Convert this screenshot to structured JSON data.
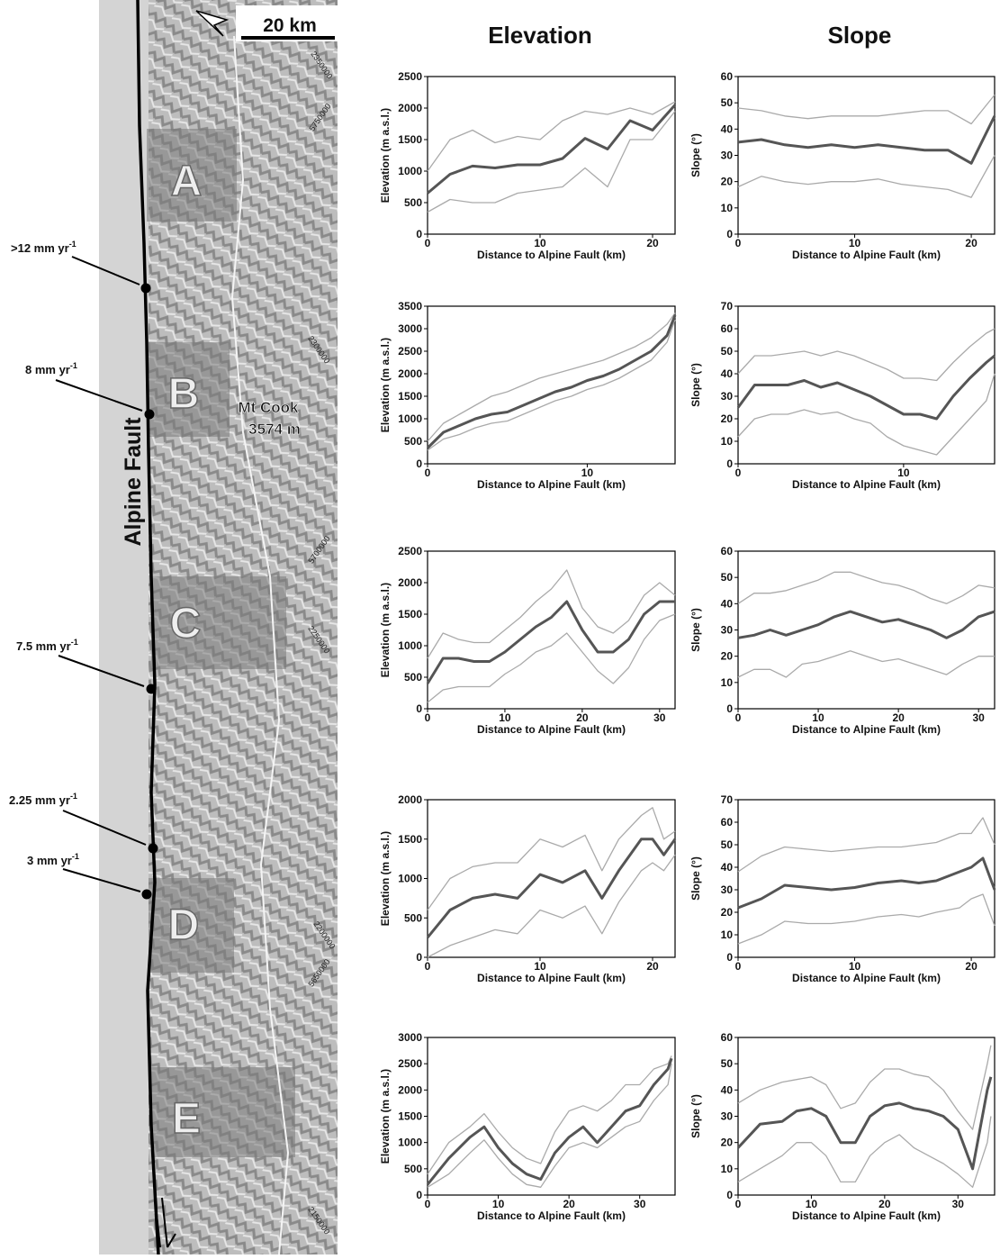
{
  "headers": {
    "elevation": "Elevation",
    "slope": "Slope"
  },
  "map": {
    "scale": "20 km",
    "fault": "Alpine Fault",
    "peak_name": "Mt Cook",
    "peak_height": "3574 m",
    "regions": [
      "A",
      "B",
      "C",
      "D",
      "E"
    ],
    "rates": [
      {
        "text": ">12 mm yr",
        "exp": "-1"
      },
      {
        "text": "8 mm yr",
        "exp": "-1"
      },
      {
        "text": "7.5 mm yr",
        "exp": "-1"
      },
      {
        "text": "2.25 mm yr",
        "exp": "-1"
      },
      {
        "text": "3 mm yr",
        "exp": "-1"
      }
    ],
    "coords": [
      "2350000",
      "5750000",
      "2300000",
      "5700000",
      "2250000",
      "2200000",
      "5650000",
      "2150000"
    ]
  },
  "chart_data": [
    {
      "type": "line",
      "xlabel": "Distance to Alpine Fault (km)",
      "ylabel": "Elevation (m a.s.l.)",
      "xlim": [
        0,
        22
      ],
      "xticks": [
        0,
        10,
        20
      ],
      "ylim": [
        0,
        2500
      ],
      "yticks": [
        0,
        500,
        1000,
        1500,
        2000,
        2500
      ],
      "x": [
        0,
        2,
        4,
        6,
        8,
        10,
        12,
        14,
        16,
        18,
        20,
        22
      ],
      "series": [
        {
          "color": "#aaaaaa",
          "values": [
            1000,
            1500,
            1650,
            1450,
            1550,
            1500,
            1800,
            1950,
            1900,
            2000,
            1900,
            2100
          ]
        },
        {
          "color": "#aaaaaa",
          "values": [
            350,
            550,
            500,
            500,
            650,
            700,
            750,
            1050,
            750,
            1500,
            1500,
            1950
          ]
        },
        {
          "color": "#555555",
          "values": [
            650,
            950,
            1080,
            1050,
            1100,
            1100,
            1200,
            1520,
            1350,
            1800,
            1650,
            2050
          ]
        }
      ]
    },
    {
      "type": "line",
      "xlabel": "Distance to Alpine Fault (km)",
      "ylabel": "Slope (°)",
      "xlim": [
        0,
        22
      ],
      "xticks": [
        0,
        10,
        20
      ],
      "ylim": [
        0,
        60
      ],
      "yticks": [
        0,
        10,
        20,
        30,
        40,
        50,
        60
      ],
      "x": [
        0,
        2,
        4,
        6,
        8,
        10,
        12,
        14,
        16,
        18,
        20,
        22
      ],
      "series": [
        {
          "color": "#aaaaaa",
          "values": [
            48,
            47,
            45,
            44,
            45,
            45,
            45,
            46,
            47,
            47,
            42,
            53
          ]
        },
        {
          "color": "#aaaaaa",
          "values": [
            18,
            22,
            20,
            19,
            20,
            20,
            21,
            19,
            18,
            17,
            14,
            30
          ]
        },
        {
          "color": "#555555",
          "values": [
            35,
            36,
            34,
            33,
            34,
            33,
            34,
            33,
            32,
            32,
            27,
            45
          ]
        }
      ]
    },
    {
      "type": "line",
      "xlabel": "Distance to Alpine Fault (km)",
      "ylabel": "Elevation (m a.s.l.)",
      "xlim": [
        0,
        15.5
      ],
      "xticks": [
        0,
        10
      ],
      "ylim": [
        0,
        3500
      ],
      "yticks": [
        0,
        500,
        1000,
        1500,
        2000,
        2500,
        3000,
        3500
      ],
      "x": [
        0,
        1,
        2,
        3,
        4,
        5,
        6,
        7,
        8,
        9,
        10,
        11,
        12,
        13,
        14,
        15,
        15.5
      ],
      "series": [
        {
          "color": "#aaaaaa",
          "values": [
            500,
            900,
            1100,
            1300,
            1500,
            1600,
            1750,
            1900,
            2000,
            2100,
            2200,
            2300,
            2450,
            2600,
            2800,
            3100,
            3350
          ]
        },
        {
          "color": "#aaaaaa",
          "values": [
            300,
            550,
            650,
            800,
            900,
            950,
            1100,
            1250,
            1400,
            1500,
            1650,
            1750,
            1900,
            2100,
            2300,
            2700,
            3200
          ]
        },
        {
          "color": "#555555",
          "values": [
            350,
            700,
            850,
            1000,
            1100,
            1150,
            1300,
            1450,
            1600,
            1700,
            1850,
            1950,
            2100,
            2300,
            2500,
            2850,
            3300
          ]
        }
      ]
    },
    {
      "type": "line",
      "xlabel": "Distance to Alpine Fault (km)",
      "ylabel": "Slope (°)",
      "xlim": [
        0,
        15.5
      ],
      "xticks": [
        0,
        10
      ],
      "ylim": [
        0,
        70
      ],
      "yticks": [
        0,
        10,
        20,
        30,
        40,
        50,
        60,
        70
      ],
      "x": [
        0,
        1,
        2,
        3,
        4,
        5,
        6,
        7,
        8,
        9,
        10,
        11,
        12,
        13,
        14,
        15,
        15.5
      ],
      "series": [
        {
          "color": "#aaaaaa",
          "values": [
            40,
            48,
            48,
            49,
            50,
            48,
            50,
            48,
            45,
            42,
            38,
            38,
            37,
            45,
            52,
            58,
            60
          ]
        },
        {
          "color": "#aaaaaa",
          "values": [
            12,
            20,
            22,
            22,
            24,
            22,
            23,
            20,
            18,
            12,
            8,
            6,
            4,
            12,
            20,
            28,
            40
          ]
        },
        {
          "color": "#555555",
          "values": [
            25,
            35,
            35,
            35,
            37,
            34,
            36,
            33,
            30,
            26,
            22,
            22,
            20,
            30,
            38,
            45,
            48
          ]
        }
      ]
    },
    {
      "type": "line",
      "xlabel": "Distance to Alpine Fault (km)",
      "ylabel": "Elevation (m a.s.l.)",
      "xlim": [
        0,
        32
      ],
      "xticks": [
        0,
        10,
        20,
        30
      ],
      "ylim": [
        0,
        2500
      ],
      "yticks": [
        0,
        500,
        1000,
        1500,
        2000,
        2500
      ],
      "x": [
        0,
        2,
        4,
        6,
        8,
        10,
        12,
        14,
        16,
        18,
        20,
        22,
        24,
        26,
        28,
        30,
        32
      ],
      "series": [
        {
          "color": "#aaaaaa",
          "values": [
            800,
            1200,
            1100,
            1050,
            1050,
            1250,
            1450,
            1700,
            1900,
            2200,
            1600,
            1300,
            1200,
            1400,
            1800,
            2000,
            1800
          ]
        },
        {
          "color": "#aaaaaa",
          "values": [
            100,
            300,
            350,
            350,
            350,
            550,
            700,
            900,
            1000,
            1200,
            900,
            600,
            400,
            650,
            1100,
            1400,
            1500
          ]
        },
        {
          "color": "#555555",
          "values": [
            400,
            800,
            800,
            750,
            750,
            900,
            1100,
            1300,
            1450,
            1700,
            1250,
            900,
            900,
            1100,
            1500,
            1700,
            1700
          ]
        }
      ]
    },
    {
      "type": "line",
      "xlabel": "Distance to Alpine Fault (km)",
      "ylabel": "Slope (°)",
      "xlim": [
        0,
        32
      ],
      "xticks": [
        0,
        10,
        20,
        30
      ],
      "ylim": [
        0,
        60
      ],
      "yticks": [
        0,
        10,
        20,
        30,
        40,
        50,
        60
      ],
      "x": [
        0,
        2,
        4,
        6,
        8,
        10,
        12,
        14,
        16,
        18,
        20,
        22,
        24,
        26,
        28,
        30,
        32
      ],
      "series": [
        {
          "color": "#aaaaaa",
          "values": [
            40,
            44,
            44,
            45,
            47,
            49,
            52,
            52,
            50,
            48,
            47,
            45,
            42,
            40,
            43,
            47,
            46
          ]
        },
        {
          "color": "#aaaaaa",
          "values": [
            12,
            15,
            15,
            12,
            17,
            18,
            20,
            22,
            20,
            18,
            19,
            17,
            15,
            13,
            17,
            20,
            20
          ]
        },
        {
          "color": "#555555",
          "values": [
            27,
            28,
            30,
            28,
            30,
            32,
            35,
            37,
            35,
            33,
            34,
            32,
            30,
            27,
            30,
            35,
            37
          ]
        }
      ]
    },
    {
      "type": "line",
      "xlabel": "Distance to Alpine Fault (km)",
      "ylabel": "Elevation (m a.s.l.)",
      "xlim": [
        0,
        22
      ],
      "xticks": [
        0,
        10,
        20
      ],
      "ylim": [
        0,
        2000
      ],
      "yticks": [
        0,
        500,
        1000,
        1500,
        2000
      ],
      "x": [
        0,
        2,
        4,
        6,
        8,
        10,
        12,
        14,
        15.5,
        17,
        19,
        20,
        21,
        22
      ],
      "series": [
        {
          "color": "#aaaaaa",
          "values": [
            600,
            1000,
            1150,
            1200,
            1200,
            1500,
            1400,
            1550,
            1100,
            1500,
            1800,
            1900,
            1500,
            1600
          ]
        },
        {
          "color": "#aaaaaa",
          "values": [
            0,
            150,
            250,
            350,
            300,
            600,
            500,
            650,
            300,
            700,
            1100,
            1200,
            1100,
            1300
          ]
        },
        {
          "color": "#555555",
          "values": [
            250,
            600,
            750,
            800,
            750,
            1050,
            950,
            1100,
            750,
            1100,
            1500,
            1500,
            1300,
            1500
          ]
        }
      ]
    },
    {
      "type": "line",
      "xlabel": "Distance to Alpine Fault (km)",
      "ylabel": "Slope (°)",
      "xlim": [
        0,
        22
      ],
      "xticks": [
        0,
        10,
        20
      ],
      "ylim": [
        0,
        70
      ],
      "yticks": [
        0,
        10,
        20,
        30,
        40,
        50,
        60,
        70
      ],
      "x": [
        0,
        2,
        4,
        6,
        8,
        10,
        12,
        14,
        15.5,
        17,
        19,
        20,
        21,
        22
      ],
      "series": [
        {
          "color": "#aaaaaa",
          "values": [
            38,
            45,
            49,
            48,
            47,
            48,
            49,
            49,
            50,
            51,
            55,
            55,
            62,
            50
          ]
        },
        {
          "color": "#aaaaaa",
          "values": [
            6,
            10,
            16,
            15,
            15,
            16,
            18,
            19,
            18,
            20,
            22,
            26,
            28,
            14
          ]
        },
        {
          "color": "#555555",
          "values": [
            22,
            26,
            32,
            31,
            30,
            31,
            33,
            34,
            33,
            34,
            38,
            40,
            44,
            30
          ]
        }
      ]
    },
    {
      "type": "line",
      "xlabel": "Distance to Alpine Fault (km)",
      "ylabel": "Elevation (m a.s.l.)",
      "xlim": [
        0,
        35
      ],
      "xticks": [
        0,
        10,
        20,
        30
      ],
      "ylim": [
        0,
        3000
      ],
      "yticks": [
        0,
        500,
        1000,
        1500,
        2000,
        2500,
        3000
      ],
      "x": [
        0,
        3,
        6,
        8,
        10,
        12,
        14,
        16,
        18,
        20,
        22,
        24,
        26,
        28,
        30,
        32,
        34,
        34.5
      ],
      "series": [
        {
          "color": "#aaaaaa",
          "values": [
            400,
            1000,
            1300,
            1550,
            1200,
            900,
            700,
            600,
            1200,
            1600,
            1700,
            1600,
            1800,
            2100,
            2100,
            2400,
            2500,
            2650
          ]
        },
        {
          "color": "#aaaaaa",
          "values": [
            150,
            400,
            800,
            1050,
            700,
            400,
            200,
            150,
            550,
            900,
            1000,
            900,
            1100,
            1300,
            1400,
            1800,
            2100,
            2500
          ]
        },
        {
          "color": "#555555",
          "values": [
            200,
            700,
            1100,
            1300,
            900,
            600,
            400,
            300,
            800,
            1100,
            1300,
            1000,
            1300,
            1600,
            1700,
            2100,
            2400,
            2600
          ]
        }
      ]
    },
    {
      "type": "line",
      "xlabel": "Distance to Alpine Fault (km)",
      "ylabel": "Slope (°)",
      "xlim": [
        0,
        35
      ],
      "xticks": [
        0,
        10,
        20,
        30
      ],
      "ylim": [
        0,
        60
      ],
      "yticks": [
        0,
        10,
        20,
        30,
        40,
        50,
        60
      ],
      "x": [
        0,
        3,
        6,
        8,
        10,
        12,
        14,
        16,
        18,
        20,
        22,
        24,
        26,
        28,
        30,
        32,
        34,
        34.5
      ],
      "series": [
        {
          "color": "#aaaaaa",
          "values": [
            35,
            40,
            43,
            44,
            45,
            42,
            33,
            35,
            43,
            48,
            48,
            46,
            45,
            40,
            32,
            25,
            50,
            57
          ]
        },
        {
          "color": "#aaaaaa",
          "values": [
            5,
            10,
            15,
            20,
            20,
            15,
            5,
            5,
            15,
            20,
            23,
            18,
            15,
            12,
            8,
            3,
            20,
            30
          ]
        },
        {
          "color": "#555555",
          "values": [
            18,
            27,
            28,
            32,
            33,
            30,
            20,
            20,
            30,
            34,
            35,
            33,
            32,
            30,
            25,
            10,
            40,
            45
          ]
        }
      ]
    }
  ]
}
